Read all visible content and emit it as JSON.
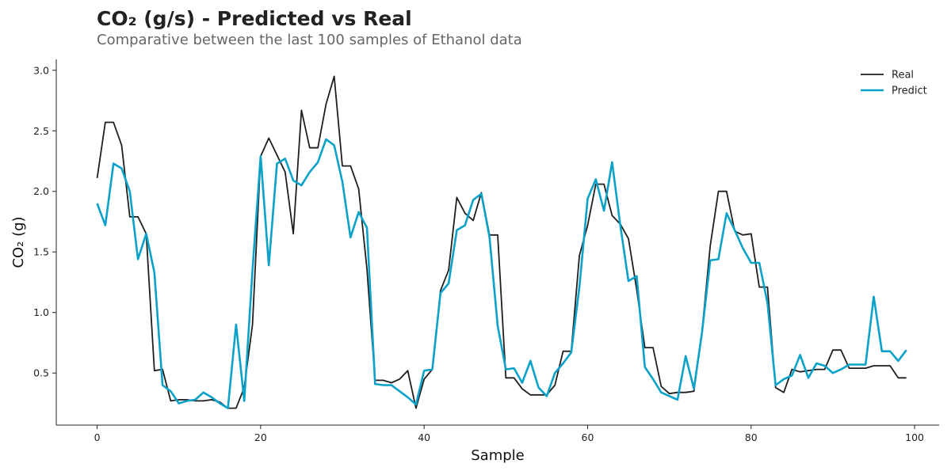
{
  "chart_data": {
    "type": "line",
    "title": "CO₂ (g/s) - Predicted vs Real",
    "subtitle": "Comparative between the last 100 samples of Ethanol data",
    "xlabel": "Sample",
    "ylabel": "CO₂ (g)",
    "xlim": [
      -5,
      103
    ],
    "ylim": [
      0.07,
      3.09
    ],
    "xticks": [
      0,
      20,
      40,
      60,
      80,
      100
    ],
    "yticks": [
      0.5,
      1.0,
      1.5,
      2.0,
      2.5,
      3.0
    ],
    "xtick_labels": [
      "0",
      "20",
      "40",
      "60",
      "80",
      "100"
    ],
    "ytick_labels": [
      "0.5",
      "1.0",
      "1.5",
      "2.0",
      "2.5",
      "3.0"
    ],
    "grid": false,
    "legend_position": "top-right",
    "x": [
      0,
      1,
      2,
      3,
      4,
      5,
      6,
      7,
      8,
      9,
      10,
      11,
      12,
      13,
      14,
      15,
      16,
      17,
      18,
      19,
      20,
      21,
      22,
      23,
      24,
      25,
      26,
      27,
      28,
      29,
      30,
      31,
      32,
      33,
      34,
      35,
      36,
      37,
      38,
      39,
      40,
      41,
      42,
      43,
      44,
      45,
      46,
      47,
      48,
      49,
      50,
      51,
      52,
      53,
      54,
      55,
      56,
      57,
      58,
      59,
      60,
      61,
      62,
      63,
      64,
      65,
      66,
      67,
      68,
      69,
      70,
      71,
      72,
      73,
      74,
      75,
      76,
      77,
      78,
      79,
      80,
      81,
      82,
      83,
      84,
      85,
      86,
      87,
      88,
      89,
      90,
      91,
      92,
      93,
      94,
      95,
      96,
      97,
      98,
      99
    ],
    "series": [
      {
        "name": "Real",
        "color": "#1f1f1f",
        "values": [
          2.11,
          2.57,
          2.57,
          2.38,
          1.79,
          1.79,
          1.65,
          0.52,
          0.53,
          0.27,
          0.28,
          0.28,
          0.27,
          0.27,
          0.28,
          0.26,
          0.21,
          0.21,
          0.38,
          0.9,
          2.29,
          2.44,
          2.3,
          2.16,
          1.65,
          2.67,
          2.36,
          2.36,
          2.72,
          2.95,
          2.21,
          2.21,
          2.02,
          1.36,
          0.44,
          0.44,
          0.42,
          0.45,
          0.52,
          0.21,
          0.45,
          0.53,
          1.18,
          1.35,
          1.95,
          1.82,
          1.76,
          1.99,
          1.64,
          1.64,
          0.46,
          0.46,
          0.37,
          0.32,
          0.32,
          0.32,
          0.4,
          0.68,
          0.68,
          1.47,
          1.72,
          2.06,
          2.06,
          1.8,
          1.73,
          1.61,
          1.19,
          0.71,
          0.71,
          0.39,
          0.33,
          0.34,
          0.34,
          0.35,
          0.85,
          1.55,
          2.0,
          2.0,
          1.67,
          1.64,
          1.65,
          1.21,
          1.21,
          0.38,
          0.34,
          0.53,
          0.51,
          0.52,
          0.53,
          0.53,
          0.69,
          0.69,
          0.54,
          0.54,
          0.54,
          0.56,
          0.56,
          0.56,
          0.46,
          0.46
        ]
      },
      {
        "name": "Predict",
        "color": "#0aa2c8",
        "values": [
          1.9,
          1.72,
          2.23,
          2.19,
          2.0,
          1.44,
          1.65,
          1.33,
          0.4,
          0.35,
          0.25,
          0.27,
          0.28,
          0.34,
          0.3,
          0.25,
          0.21,
          0.9,
          0.27,
          1.35,
          2.29,
          1.39,
          2.23,
          2.27,
          2.09,
          2.05,
          2.16,
          2.24,
          2.43,
          2.38,
          2.08,
          1.62,
          1.83,
          1.7,
          0.41,
          0.4,
          0.4,
          0.35,
          0.3,
          0.24,
          0.52,
          0.53,
          1.16,
          1.24,
          1.68,
          1.72,
          1.93,
          1.98,
          1.62,
          0.89,
          0.53,
          0.54,
          0.42,
          0.6,
          0.38,
          0.31,
          0.5,
          0.58,
          0.67,
          1.21,
          1.94,
          2.1,
          1.84,
          2.24,
          1.72,
          1.26,
          1.3,
          0.55,
          0.45,
          0.34,
          0.31,
          0.28,
          0.64,
          0.37,
          0.84,
          1.43,
          1.44,
          1.82,
          1.68,
          1.53,
          1.41,
          1.41,
          1.08,
          0.4,
          0.45,
          0.48,
          0.65,
          0.46,
          0.58,
          0.56,
          0.5,
          0.53,
          0.57,
          0.57,
          0.57,
          1.13,
          0.68,
          0.68,
          0.6,
          0.69
        ]
      }
    ]
  }
}
